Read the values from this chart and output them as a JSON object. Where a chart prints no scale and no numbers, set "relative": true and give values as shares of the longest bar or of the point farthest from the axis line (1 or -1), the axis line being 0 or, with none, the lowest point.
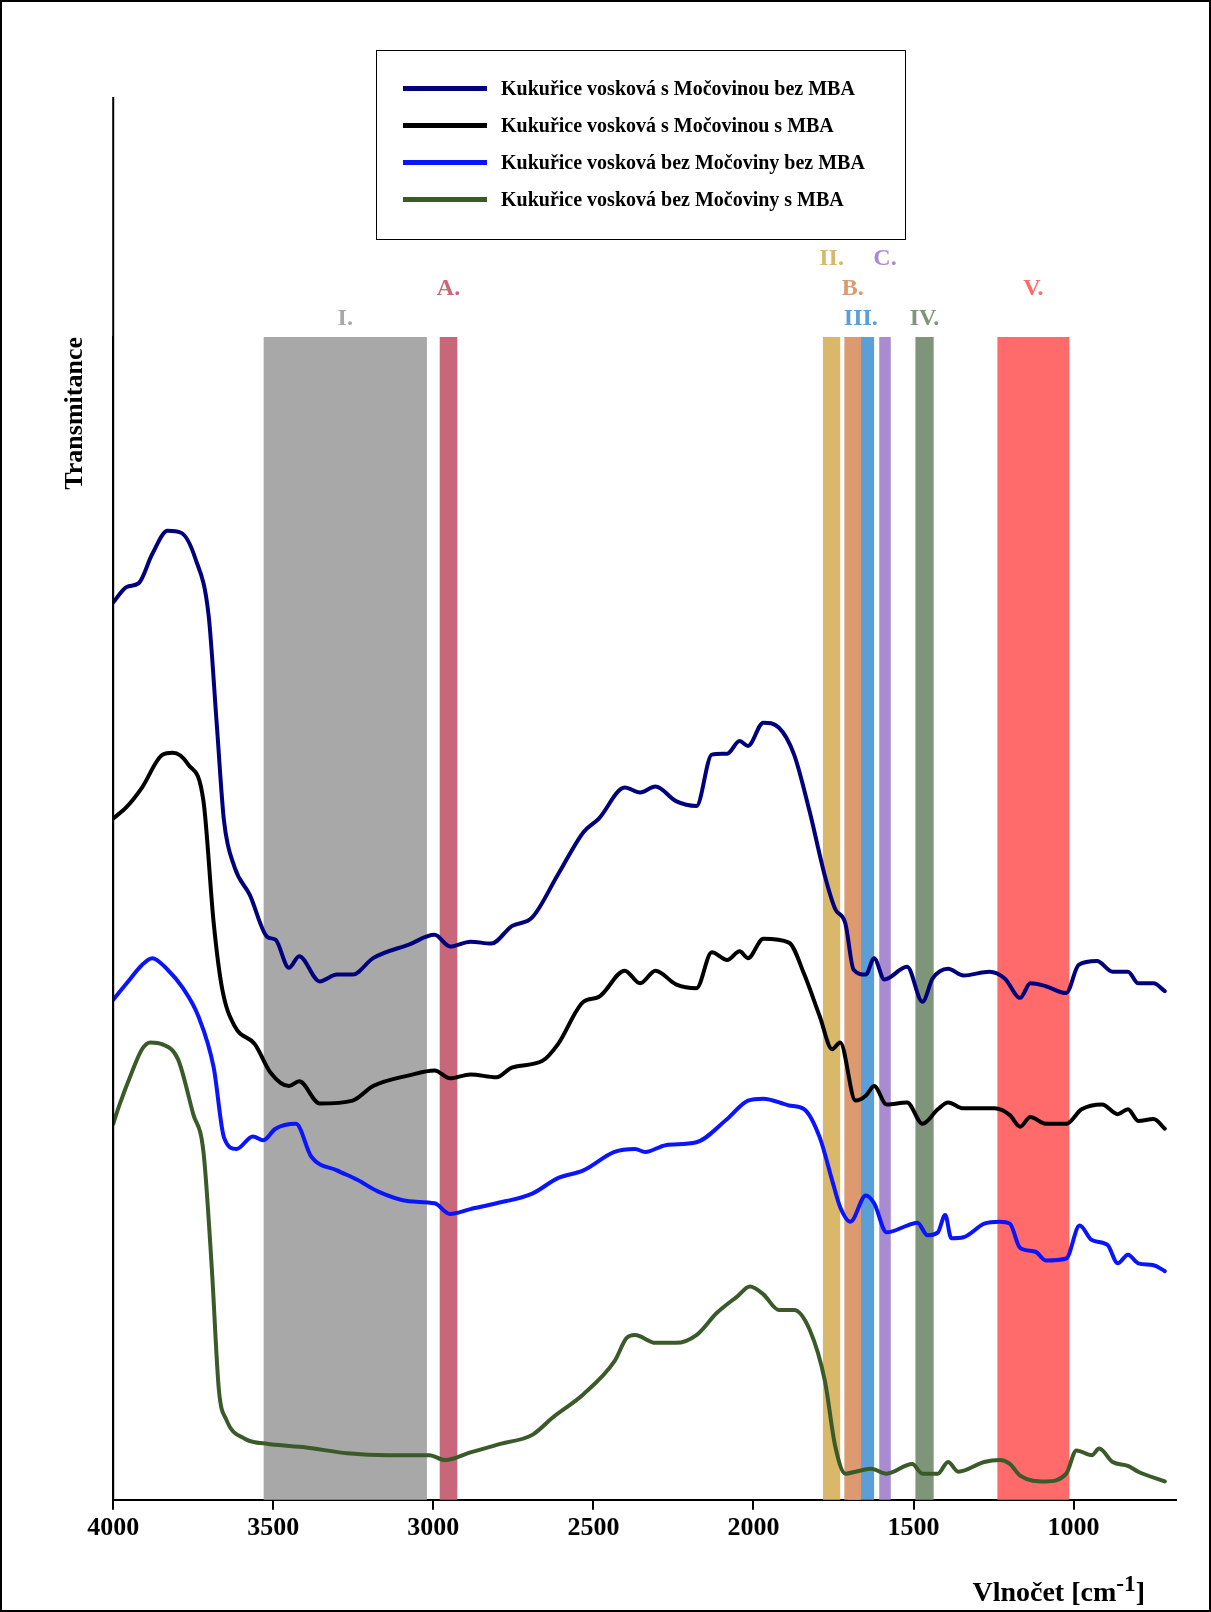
{
  "chart_data": {
    "type": "line",
    "xlabel": "Vlnočet [cm$^{-1}$]",
    "ylabel": "Transmitance",
    "relative": true,
    "xlim": [
      4000,
      680
    ],
    "xticks": [
      4000,
      3500,
      3000,
      2500,
      2000,
      1500,
      1000
    ],
    "grid": false,
    "legend": "top",
    "marker": "none",
    "line_style": "solid",
    "series": [
      {
        "name": "Kukuřice vosková s Močovinou bez MBA",
        "color": "#00007d",
        "x": [
          4000,
          3958,
          3920,
          3878,
          3830,
          3788,
          3743,
          3702,
          3676,
          3654,
          3621,
          3573,
          3519,
          3493,
          3451,
          3419,
          3355,
          3301,
          3252,
          3188,
          3076,
          2996,
          2948,
          2884,
          2819,
          2755,
          2691,
          2611,
          2531,
          2483,
          2402,
          2354,
          2306,
          2242,
          2178,
          2130,
          2082,
          2043,
          2017,
          1969,
          1921,
          1873,
          1825,
          1777,
          1745,
          1713,
          1687,
          1649,
          1623,
          1591,
          1520,
          1472,
          1440,
          1392,
          1344,
          1263,
          1215,
          1167,
          1135,
          1087,
          1023,
          984,
          927,
          878,
          830,
          798,
          750,
          715
        ],
        "values": [
          0.926,
          0.942,
          0.946,
          0.976,
          1.0,
          0.998,
          0.971,
          0.913,
          0.798,
          0.701,
          0.653,
          0.624,
          0.581,
          0.578,
          0.549,
          0.561,
          0.535,
          0.542,
          0.542,
          0.559,
          0.573,
          0.583,
          0.571,
          0.576,
          0.574,
          0.592,
          0.601,
          0.645,
          0.689,
          0.703,
          0.735,
          0.73,
          0.736,
          0.721,
          0.716,
          0.769,
          0.77,
          0.783,
          0.778,
          0.802,
          0.797,
          0.769,
          0.711,
          0.644,
          0.61,
          0.595,
          0.547,
          0.542,
          0.559,
          0.537,
          0.55,
          0.514,
          0.538,
          0.548,
          0.541,
          0.545,
          0.538,
          0.518,
          0.533,
          0.53,
          0.523,
          0.552,
          0.556,
          0.545,
          0.545,
          0.533,
          0.533,
          0.525
        ]
      },
      {
        "name": "Kukuřice vosková s Močovinou s MBA",
        "color": "#000000",
        "x": [
          4000,
          3958,
          3910,
          3846,
          3814,
          3766,
          3718,
          3686,
          3660,
          3621,
          3557,
          3509,
          3451,
          3419,
          3355,
          3252,
          3188,
          3076,
          2996,
          2948,
          2884,
          2803,
          2755,
          2659,
          2611,
          2531,
          2483,
          2402,
          2354,
          2306,
          2242,
          2178,
          2130,
          2082,
          2043,
          2017,
          1969,
          1889,
          1841,
          1793,
          1754,
          1729,
          1681,
          1649,
          1623,
          1584,
          1520,
          1472,
          1424,
          1392,
          1344,
          1247,
          1199,
          1167,
          1135,
          1087,
          1023,
          975,
          911,
          862,
          830,
          798,
          750,
          715
        ],
        "values": [
          0.703,
          0.715,
          0.735,
          0.769,
          0.771,
          0.759,
          0.721,
          0.595,
          0.528,
          0.489,
          0.47,
          0.441,
          0.427,
          0.432,
          0.409,
          0.412,
          0.427,
          0.438,
          0.443,
          0.435,
          0.439,
          0.436,
          0.446,
          0.453,
          0.47,
          0.514,
          0.519,
          0.546,
          0.533,
          0.546,
          0.532,
          0.528,
          0.565,
          0.557,
          0.566,
          0.559,
          0.579,
          0.575,
          0.542,
          0.499,
          0.465,
          0.472,
          0.412,
          0.417,
          0.427,
          0.408,
          0.41,
          0.388,
          0.403,
          0.41,
          0.404,
          0.404,
          0.397,
          0.385,
          0.395,
          0.388,
          0.388,
          0.403,
          0.408,
          0.398,
          0.403,
          0.391,
          0.393,
          0.383
        ]
      },
      {
        "name": "Kukuřice vosková bez Močoviny bez MBA",
        "color": "#0a14ff",
        "x": [
          4000,
          3958,
          3910,
          3878,
          3830,
          3782,
          3734,
          3686,
          3654,
          3615,
          3564,
          3532,
          3493,
          3429,
          3381,
          3301,
          3236,
          3172,
          3076,
          2996,
          2948,
          2884,
          2803,
          2691,
          2611,
          2531,
          2434,
          2370,
          2338,
          2274,
          2178,
          2082,
          2017,
          1969,
          1889,
          1841,
          1793,
          1751,
          1729,
          1697,
          1649,
          1623,
          1584,
          1520,
          1488,
          1456,
          1424,
          1401,
          1382,
          1344,
          1279,
          1231,
          1199,
          1167,
          1119,
          1087,
          1023,
          981,
          943,
          894,
          862,
          830,
          798,
          750,
          715
        ],
        "values": [
          0.516,
          0.533,
          0.552,
          0.559,
          0.547,
          0.528,
          0.499,
          0.446,
          0.374,
          0.362,
          0.375,
          0.371,
          0.383,
          0.388,
          0.354,
          0.34,
          0.33,
          0.318,
          0.308,
          0.306,
          0.295,
          0.3,
          0.306,
          0.316,
          0.332,
          0.34,
          0.359,
          0.362,
          0.359,
          0.366,
          0.369,
          0.393,
          0.412,
          0.414,
          0.407,
          0.403,
          0.374,
          0.326,
          0.302,
          0.287,
          0.314,
          0.306,
          0.276,
          0.283,
          0.286,
          0.273,
          0.276,
          0.294,
          0.27,
          0.271,
          0.285,
          0.287,
          0.285,
          0.26,
          0.256,
          0.247,
          0.249,
          0.283,
          0.268,
          0.263,
          0.244,
          0.253,
          0.244,
          0.242,
          0.236
        ]
      },
      {
        "name": "Kukuřice vosková bez Močoviny s MBA",
        "color": "#3b5a2a",
        "x": [
          4000,
          3981,
          3942,
          3910,
          3884,
          3846,
          3798,
          3750,
          3718,
          3692,
          3670,
          3647,
          3589,
          3525,
          3397,
          3269,
          3140,
          3012,
          2964,
          2884,
          2787,
          2691,
          2627,
          2531,
          2434,
          2396,
          2370,
          2306,
          2242,
          2178,
          2114,
          2050,
          2011,
          1969,
          1921,
          1873,
          1825,
          1777,
          1745,
          1713,
          1681,
          1633,
          1584,
          1504,
          1472,
          1424,
          1392,
          1360,
          1279,
          1231,
          1199,
          1167,
          1087,
          1023,
          991,
          943,
          920,
          878,
          830,
          798,
          715
        ],
        "values": [
          0.388,
          0.407,
          0.441,
          0.465,
          0.472,
          0.47,
          0.455,
          0.398,
          0.359,
          0.239,
          0.114,
          0.083,
          0.063,
          0.058,
          0.054,
          0.048,
          0.046,
          0.046,
          0.041,
          0.049,
          0.058,
          0.067,
          0.085,
          0.109,
          0.143,
          0.167,
          0.17,
          0.162,
          0.162,
          0.17,
          0.193,
          0.21,
          0.22,
          0.212,
          0.196,
          0.196,
          0.176,
          0.123,
          0.056,
          0.027,
          0.029,
          0.032,
          0.027,
          0.037,
          0.027,
          0.027,
          0.039,
          0.029,
          0.039,
          0.041,
          0.037,
          0.025,
          0.019,
          0.027,
          0.051,
          0.046,
          0.053,
          0.039,
          0.035,
          0.029,
          0.019
        ]
      }
    ],
    "bands": [
      {
        "axis": "x",
        "from": 3530,
        "to": 3020,
        "label": "I.",
        "color": "#a8a8a8"
      },
      {
        "axis": "x",
        "from": 2980,
        "to": 2925,
        "label": "A.",
        "color": "#c9677a"
      },
      {
        "axis": "x",
        "from": 1783,
        "to": 1729,
        "label": "II.",
        "color": "#d9b86a"
      },
      {
        "axis": "x",
        "from": 1706,
        "to": 1623,
        "label": "III.",
        "color": "#5b9fd8"
      },
      {
        "axis": "x",
        "from": 1716,
        "to": 1664,
        "label": "B.",
        "color": "#dd9a70"
      },
      {
        "axis": "x",
        "from": 1607,
        "to": 1571,
        "label": "C.",
        "color": "#a98bd0"
      },
      {
        "axis": "x",
        "from": 1494,
        "to": 1437,
        "label": "IV.",
        "color": "#7f957a"
      },
      {
        "axis": "x",
        "from": 1238,
        "to": 1013,
        "label": "V.",
        "color": "#ff6b6b"
      }
    ]
  }
}
